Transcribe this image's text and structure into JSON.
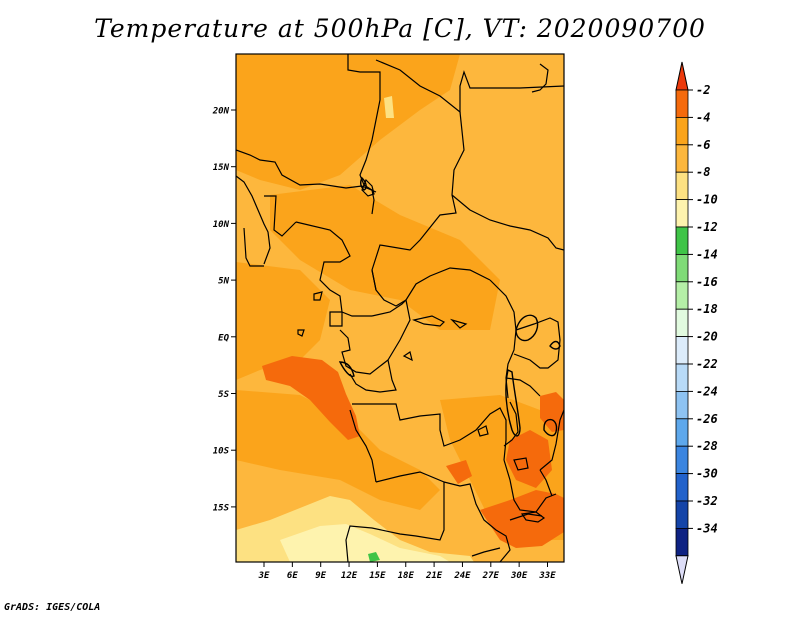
{
  "title": "Temperature at 500hPa [C], VT: 2020090700",
  "footer": "GrADS: IGES/COLA",
  "map": {
    "lon_labels": [
      "3E",
      "6E",
      "9E",
      "12E",
      "15E",
      "18E",
      "21E",
      "24E",
      "27E",
      "30E",
      "33E"
    ],
    "lat_labels": [
      "20N",
      "15N",
      "10N",
      "5N",
      "EQ",
      "5S",
      "10S",
      "15S"
    ],
    "background_color": "#fdb73d",
    "field_colors": {
      "minus_2_to_minus_4": "#f56a0c",
      "minus_4_to_minus_6": "#fba41b",
      "minus_6_to_minus_8": "#fdb73d",
      "minus_8_to_minus_10": "#fde182",
      "minus_10_to_minus_12": "#fef3ae",
      "minus_12_to_minus_14": "#3fc447"
    }
  },
  "colorbar": {
    "labels": [
      "-2",
      "-4",
      "-6",
      "-8",
      "-10",
      "-12",
      "-14",
      "-16",
      "-18",
      "-20",
      "-22",
      "-24",
      "-26",
      "-28",
      "-30",
      "-32",
      "-34"
    ],
    "colors": [
      "#ec3a0c",
      "#f56a0c",
      "#fba41b",
      "#fdb73d",
      "#fde182",
      "#fef3ae",
      "#3fc447",
      "#7fdb77",
      "#b5efa7",
      "#e2fbe0",
      "#dcecfb",
      "#b8daf7",
      "#8ec3f2",
      "#5ea8ec",
      "#3b85e0",
      "#2262cb",
      "#1444a8",
      "#0e2283",
      "#ddddf7"
    ]
  }
}
